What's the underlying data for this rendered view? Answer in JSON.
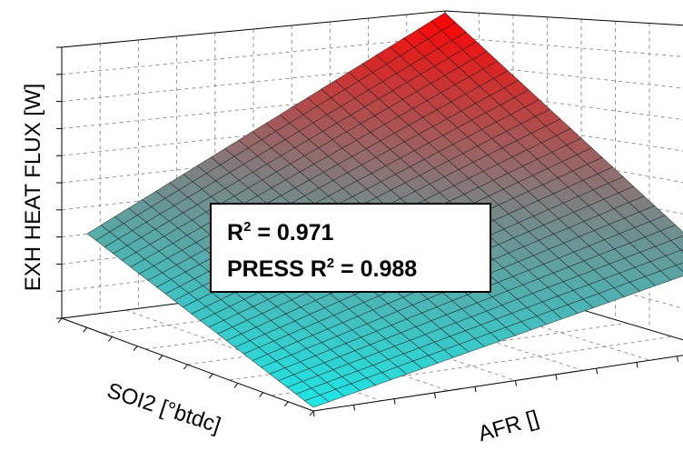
{
  "chart_data": {
    "type": "surface",
    "title": "",
    "xlabel": "AFR []",
    "ylabel": "SOI2 [°btdc]",
    "zlabel": "EXH HEAT FLUX [W]",
    "grid": true,
    "legend": "none",
    "colormap": {
      "low": "#1fe6e6",
      "mid": "#7f7f7f",
      "high": "#ff0000"
    },
    "surface_corners_normalized": {
      "afr_low_soi_low": 0.28,
      "afr_high_soi_low": 0.0,
      "afr_low_soi_high": 1.0,
      "afr_high_soi_high": 0.34
    },
    "annotation": {
      "r2_label": "R",
      "r2_sup": "2",
      "r2_value": " = 0.971",
      "press_label": "PRESS R",
      "press_sup": "2",
      "press_value": " = 0.988"
    }
  }
}
